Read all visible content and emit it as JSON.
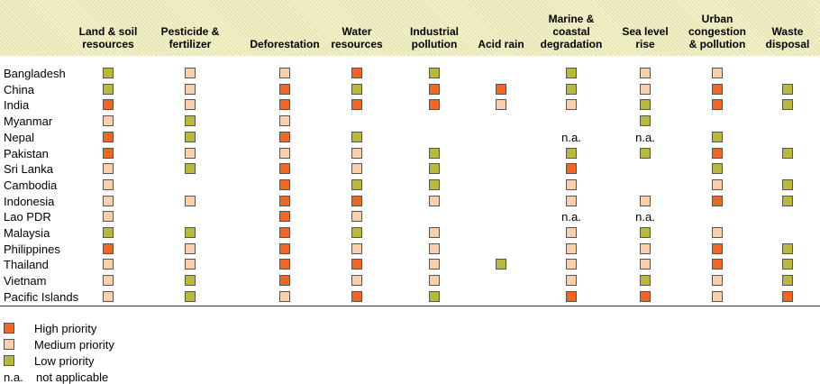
{
  "chart_data": {
    "type": "table",
    "columns": [
      "Land & soil\nresources",
      "Pesticide &\nfertilizer",
      "Deforestation",
      "Water\nresources",
      "Industrial\npollution",
      "Acid rain",
      "Marine &\ncoastal\ndegradation",
      "Sea level\nrise",
      "Urban\ncongestion\n& pollution",
      "Waste\ndisposal"
    ],
    "rows": [
      {
        "country": "Bangladesh",
        "values": [
          "L",
          "M",
          "M",
          "H",
          "L",
          "",
          "L",
          "M",
          "M",
          ""
        ]
      },
      {
        "country": "China",
        "values": [
          "L",
          "M",
          "H",
          "L",
          "H",
          "H",
          "L",
          "M",
          "H",
          "L"
        ]
      },
      {
        "country": "India",
        "values": [
          "H",
          "M",
          "H",
          "H",
          "H",
          "M",
          "M",
          "L",
          "H",
          "L"
        ]
      },
      {
        "country": "Myanmar",
        "values": [
          "M",
          "L",
          "M",
          "",
          "",
          "",
          "",
          "L",
          "",
          ""
        ]
      },
      {
        "country": "Nepal",
        "values": [
          "H",
          "L",
          "H",
          "L",
          "",
          "",
          "n.a.",
          "n.a.",
          "L",
          ""
        ]
      },
      {
        "country": "Pakistan",
        "values": [
          "H",
          "M",
          "M",
          "M",
          "L",
          "",
          "L",
          "L",
          "H",
          "L"
        ]
      },
      {
        "country": "Sri Lanka",
        "values": [
          "M",
          "L",
          "H",
          "M",
          "L",
          "",
          "H",
          "",
          "L",
          ""
        ]
      },
      {
        "country": "Cambodia",
        "values": [
          "M",
          "",
          "H",
          "L",
          "L",
          "",
          "M",
          "",
          "M",
          "L"
        ]
      },
      {
        "country": "Indonesia",
        "values": [
          "M",
          "M",
          "H",
          "H",
          "M",
          "",
          "M",
          "M",
          "H",
          "L"
        ]
      },
      {
        "country": "Lao PDR",
        "values": [
          "M",
          "",
          "H",
          "M",
          "",
          "",
          "n.a.",
          "n.a.",
          "",
          ""
        ]
      },
      {
        "country": "Malaysia",
        "values": [
          "L",
          "L",
          "H",
          "L",
          "M",
          "",
          "M",
          "L",
          "M",
          ""
        ]
      },
      {
        "country": "Philippines",
        "values": [
          "H",
          "M",
          "H",
          "M",
          "M",
          "",
          "M",
          "M",
          "H",
          "L"
        ]
      },
      {
        "country": "Thailand",
        "values": [
          "M",
          "M",
          "H",
          "H",
          "M",
          "L",
          "M",
          "M",
          "H",
          "L"
        ]
      },
      {
        "country": "Vietnam",
        "values": [
          "M",
          "L",
          "H",
          "M",
          "M",
          "",
          "M",
          "L",
          "M",
          "L"
        ]
      },
      {
        "country": "Pacific Islands",
        "values": [
          "M",
          "L",
          "M",
          "H",
          "L",
          "",
          "H",
          "H",
          "M",
          "H"
        ]
      }
    ],
    "legend": [
      {
        "key": "H",
        "label": "High priority"
      },
      {
        "key": "M",
        "label": "Medium priority"
      },
      {
        "key": "L",
        "label": "Low priority"
      },
      {
        "key": "n.a.",
        "label": "not applicable"
      }
    ],
    "colors": {
      "H": "#f26522",
      "M": "#fbcfaa",
      "L": "#b8b83a"
    }
  }
}
